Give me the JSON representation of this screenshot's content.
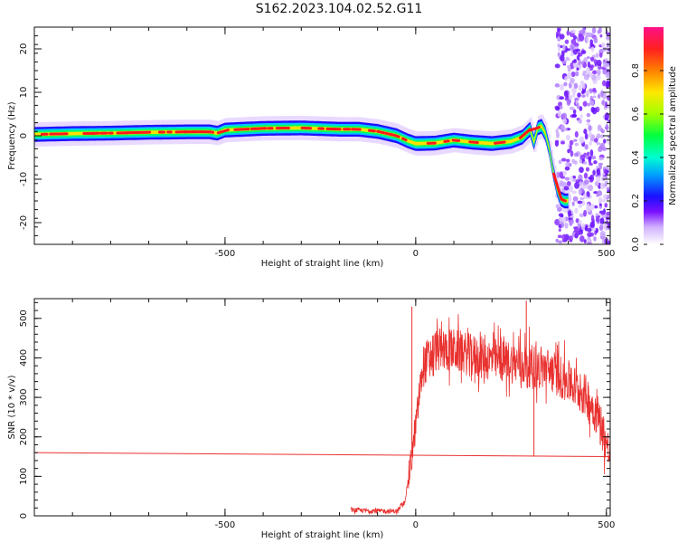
{
  "title": "S162.2023.104.02.52.G11",
  "chart_data": [
    {
      "type": "heatmap",
      "xlabel": "Height of straight line (km)",
      "ylabel": "Frequency (Hz)",
      "xlim": [
        -1000,
        510
      ],
      "ylim": [
        -25,
        25
      ],
      "xticks": [
        -500,
        0,
        500
      ],
      "yticks": [
        -20,
        -10,
        0,
        10,
        20
      ],
      "colorbar": {
        "label": "Normalized spectral amplitude",
        "range": [
          0.0,
          1.0
        ],
        "ticks": [
          0.0,
          0.2,
          0.4,
          0.6,
          0.8
        ]
      },
      "ridge": {
        "x": [
          -1000,
          -900,
          -800,
          -700,
          -600,
          -540,
          -520,
          -500,
          -400,
          -300,
          -200,
          -150,
          -100,
          -50,
          -20,
          0,
          50,
          100,
          150,
          200,
          250,
          280,
          300,
          310,
          320,
          330,
          340,
          350,
          360,
          370,
          380,
          390,
          400
        ],
        "y": [
          0.3,
          0.5,
          0.6,
          0.8,
          0.9,
          0.9,
          0.6,
          1.3,
          1.7,
          1.8,
          1.5,
          1.5,
          1.0,
          0.0,
          -1.2,
          -1.8,
          -1.7,
          -1.0,
          -1.5,
          -1.8,
          -1.3,
          -0.3,
          1.5,
          -1.5,
          1.8,
          2.2,
          0.5,
          -3.0,
          -8.0,
          -12.0,
          -14.5,
          -15.0,
          -15.0
        ]
      }
    },
    {
      "type": "line",
      "xlabel": "Height of straight line (km)",
      "ylabel": "SNR (10 * v/v)",
      "xlim": [
        -1000,
        510
      ],
      "ylim": [
        0,
        550
      ],
      "xticks": [
        -500,
        0,
        500
      ],
      "yticks": [
        0,
        100,
        200,
        300,
        400,
        500
      ],
      "series": [
        {
          "color": "#e8312f",
          "x": [
            -1000,
            -700,
            -400,
            -170,
            -100,
            -50,
            -30,
            -20,
            -10,
            0,
            20,
            50,
            100,
            150,
            200,
            250,
            300,
            350,
            400,
            450,
            480,
            510
          ],
          "y": [
            160,
            158,
            156,
            15,
            12,
            12,
            30,
            90,
            150,
            230,
            380,
            420,
            420,
            405,
            395,
            390,
            380,
            370,
            340,
            300,
            250,
            150
          ]
        }
      ]
    }
  ]
}
